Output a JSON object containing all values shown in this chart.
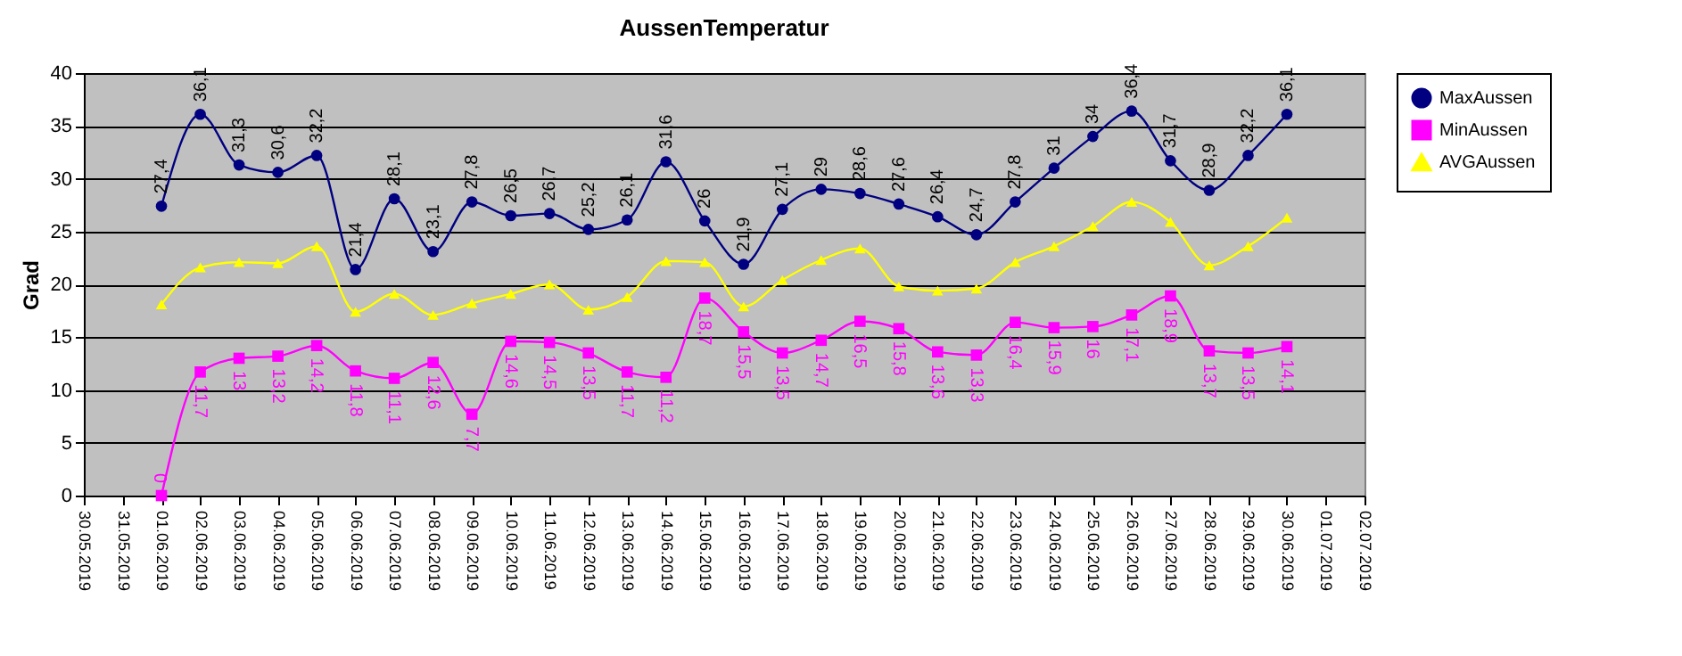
{
  "chart_data": {
    "type": "line",
    "title": "AussenTemperatur",
    "ylabel": "Grad",
    "categories": [
      "30.05.2019",
      "31.05.2019",
      "01.06.2019",
      "02.06.2019",
      "03.06.2019",
      "04.06.2019",
      "05.06.2019",
      "06.06.2019",
      "07.06.2019",
      "08.06.2019",
      "09.06.2019",
      "10.06.2019",
      "11.06.2019",
      "12.06.2019",
      "13.06.2019",
      "14.06.2019",
      "15.06.2019",
      "16.06.2019",
      "17.06.2019",
      "18.06.2019",
      "19.06.2019",
      "20.06.2019",
      "21.06.2019",
      "22.06.2019",
      "23.06.2019",
      "24.06.2019",
      "25.06.2019",
      "26.06.2019",
      "27.06.2019",
      "28.06.2019",
      "29.06.2019",
      "30.06.2019",
      "01.07.2019",
      "02.07.2019"
    ],
    "series": [
      {
        "name": "MaxAussen",
        "color": "#000080",
        "marker": "circle",
        "values": [
          null,
          null,
          27.4,
          36.1,
          31.3,
          30.6,
          32.2,
          21.4,
          28.1,
          23.1,
          27.8,
          26.5,
          26.7,
          25.2,
          26.1,
          31.6,
          26,
          21.9,
          27.1,
          29,
          28.6,
          27.6,
          26.4,
          24.7,
          27.8,
          31,
          34,
          36.4,
          31.7,
          28.9,
          32.2,
          36.1,
          null,
          null
        ],
        "value_labels": [
          null,
          null,
          "27,4",
          "36,1",
          "31,3",
          "30,6",
          "32,2",
          "21,4",
          "28,1",
          "23,1",
          "27,8",
          "26,5",
          "26,7",
          "25,2",
          "26,1",
          "31,6",
          "26",
          "21,9",
          "27,1",
          "29",
          "28,6",
          "27,6",
          "26,4",
          "24,7",
          "27,8",
          "31",
          "34",
          "36,4",
          "31,7",
          "28,9",
          "32,2",
          "36,1",
          null,
          null
        ]
      },
      {
        "name": "MinAussen",
        "color": "#ff00ff",
        "marker": "square",
        "values": [
          null,
          null,
          0,
          11.7,
          13,
          13.2,
          14.2,
          11.8,
          11.1,
          12.6,
          7.7,
          14.6,
          14.5,
          13.5,
          11.7,
          11.2,
          18.7,
          15.5,
          13.5,
          14.7,
          16.5,
          15.8,
          13.6,
          13.3,
          16.4,
          15.9,
          16,
          17.1,
          18.9,
          13.7,
          13.5,
          14.1,
          null,
          null
        ],
        "value_labels": [
          null,
          null,
          "0",
          "11,7",
          "13",
          "13,2",
          "14,2",
          "11,8",
          "11,1",
          "12,6",
          "7,7",
          "14,6",
          "14,5",
          "13,5",
          "11,7",
          "11,2",
          "18,7",
          "15,5",
          "13,5",
          "14,7",
          "16,5",
          "15,8",
          "13,6",
          "13,3",
          "16,4",
          "15,9",
          "16",
          "17,1",
          "18,9",
          "13,7",
          "13,5",
          "14,1",
          null,
          null
        ]
      },
      {
        "name": "AVGAussen",
        "color": "#ffff00",
        "marker": "triangle",
        "values": [
          null,
          null,
          18.1,
          21.6,
          22.1,
          22,
          23.6,
          17.4,
          19.1,
          17.1,
          18.2,
          19.1,
          20,
          17.6,
          18.8,
          22.2,
          22.1,
          17.9,
          20.4,
          22.3,
          23.4,
          19.8,
          19.4,
          19.6,
          22.1,
          23.6,
          25.5,
          27.8,
          25.9,
          21.8,
          23.6,
          26.3,
          null,
          null
        ]
      }
    ],
    "ylim": [
      0,
      40
    ],
    "yticks": [
      0,
      5,
      10,
      15,
      20,
      25,
      30,
      35,
      40
    ],
    "grid": "y",
    "legend": "right"
  }
}
